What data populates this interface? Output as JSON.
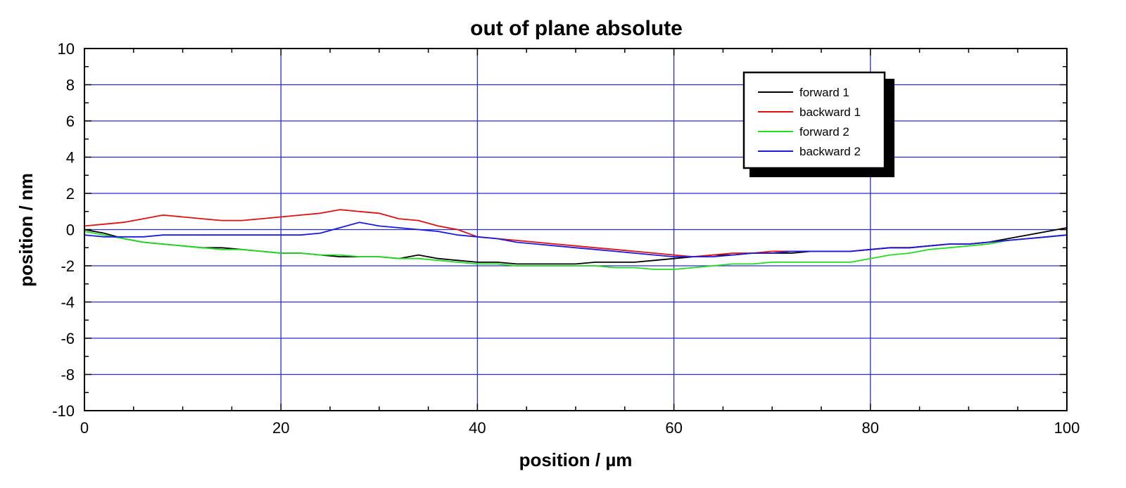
{
  "chart_data": {
    "type": "line",
    "title": "out of plane absolute",
    "xlabel": "position  / µm",
    "ylabel": "position  / nm",
    "xlim": [
      0,
      100
    ],
    "ylim": [
      -10,
      10
    ],
    "xticks": [
      0,
      20,
      40,
      60,
      80,
      100
    ],
    "yticks": [
      -10,
      -8,
      -6,
      -4,
      -2,
      0,
      2,
      4,
      6,
      8,
      10
    ],
    "grid": true,
    "grid_color": "#2a2ad0",
    "legend_position": "top-right",
    "x": [
      0,
      2,
      4,
      6,
      8,
      10,
      12,
      14,
      16,
      18,
      20,
      22,
      24,
      26,
      28,
      30,
      32,
      34,
      36,
      38,
      40,
      42,
      44,
      46,
      48,
      50,
      52,
      54,
      56,
      58,
      60,
      62,
      64,
      66,
      68,
      70,
      72,
      74,
      76,
      78,
      80,
      82,
      84,
      86,
      88,
      90,
      92,
      94,
      96,
      98,
      100
    ],
    "series": [
      {
        "name": "forward 1",
        "color": "#000000",
        "values": [
          0.0,
          -0.2,
          -0.5,
          -0.7,
          -0.8,
          -0.9,
          -1.0,
          -1.0,
          -1.1,
          -1.2,
          -1.3,
          -1.3,
          -1.4,
          -1.5,
          -1.5,
          -1.5,
          -1.6,
          -1.4,
          -1.6,
          -1.7,
          -1.8,
          -1.8,
          -1.9,
          -1.9,
          -1.9,
          -1.9,
          -1.8,
          -1.8,
          -1.8,
          -1.7,
          -1.6,
          -1.5,
          -1.4,
          -1.4,
          -1.3,
          -1.3,
          -1.3,
          -1.2,
          -1.2,
          -1.2,
          -1.1,
          -1.0,
          -1.0,
          -0.9,
          -0.8,
          -0.8,
          -0.7,
          -0.5,
          -0.3,
          -0.1,
          0.1
        ]
      },
      {
        "name": "backward 1",
        "color": "#e01010",
        "values": [
          0.2,
          0.3,
          0.4,
          0.6,
          0.8,
          0.7,
          0.6,
          0.5,
          0.5,
          0.6,
          0.7,
          0.8,
          0.9,
          1.1,
          1.0,
          0.9,
          0.6,
          0.5,
          0.2,
          0.0,
          -0.4,
          -0.5,
          -0.6,
          -0.7,
          -0.8,
          -0.9,
          -1.0,
          -1.1,
          -1.2,
          -1.3,
          -1.4,
          -1.5,
          -1.4,
          -1.3,
          -1.3,
          -1.2,
          -1.2,
          -1.2,
          -1.2,
          -1.2,
          -1.1,
          -1.0,
          -1.0,
          -0.9,
          -0.8,
          -0.8,
          -0.7,
          -0.6,
          -0.5,
          -0.4,
          -0.3
        ]
      },
      {
        "name": "forward 2",
        "color": "#22dd22",
        "values": [
          -0.1,
          -0.3,
          -0.5,
          -0.7,
          -0.8,
          -0.9,
          -1.0,
          -1.1,
          -1.1,
          -1.2,
          -1.3,
          -1.3,
          -1.4,
          -1.4,
          -1.5,
          -1.5,
          -1.6,
          -1.6,
          -1.7,
          -1.8,
          -1.9,
          -1.9,
          -2.0,
          -2.0,
          -2.0,
          -2.0,
          -2.0,
          -2.1,
          -2.1,
          -2.2,
          -2.2,
          -2.1,
          -2.0,
          -1.9,
          -1.9,
          -1.8,
          -1.8,
          -1.8,
          -1.8,
          -1.8,
          -1.6,
          -1.4,
          -1.3,
          -1.1,
          -1.0,
          -0.9,
          -0.8,
          -0.6,
          -0.5,
          -0.4,
          -0.3
        ]
      },
      {
        "name": "backward 2",
        "color": "#1a1ae0",
        "values": [
          -0.3,
          -0.4,
          -0.4,
          -0.4,
          -0.3,
          -0.3,
          -0.3,
          -0.3,
          -0.3,
          -0.3,
          -0.3,
          -0.3,
          -0.2,
          0.1,
          0.4,
          0.2,
          0.1,
          0.0,
          -0.1,
          -0.3,
          -0.4,
          -0.5,
          -0.7,
          -0.8,
          -0.9,
          -1.0,
          -1.1,
          -1.2,
          -1.3,
          -1.4,
          -1.5,
          -1.5,
          -1.5,
          -1.4,
          -1.3,
          -1.3,
          -1.2,
          -1.2,
          -1.2,
          -1.2,
          -1.1,
          -1.0,
          -1.0,
          -0.9,
          -0.8,
          -0.8,
          -0.7,
          -0.6,
          -0.5,
          -0.4,
          -0.3
        ]
      }
    ]
  }
}
